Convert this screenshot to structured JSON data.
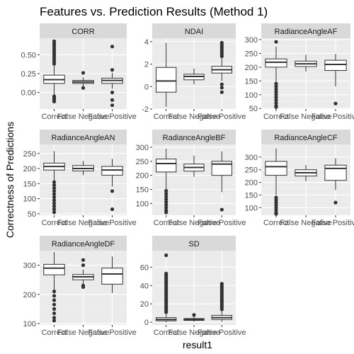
{
  "title": "Features vs. Prediction Results (Method 1)",
  "chart_data": {
    "type": "boxplot",
    "title": "Features vs. Prediction Results (Method 1)",
    "xlabel": "result1",
    "ylabel": "Correctness of Predictions",
    "categories": [
      "Correct",
      "False Negative",
      "False Positive"
    ],
    "grid": true,
    "facet_layout": "3 columns, free y scales",
    "colors": {
      "panel_background": "#ebebeb",
      "strip_background": "#d9d9d9",
      "grid_major": "#ffffff",
      "box_fill": "#ffffff",
      "box_stroke": "#333333"
    },
    "panels": [
      {
        "name": "CORR",
        "ylim": [
          -0.22,
          0.72
        ],
        "yticks": [
          0.0,
          0.25,
          0.5
        ],
        "ytick_labels": [
          "0.00",
          "0.25",
          "0.50"
        ],
        "boxes": [
          {
            "category": "Correct",
            "min": -0.04,
            "q1": 0.12,
            "median": 0.17,
            "q3": 0.23,
            "max": 0.37,
            "outliers_low": [
              -0.05,
              -0.07,
              -0.09,
              -0.1,
              -0.12
            ],
            "outliers_high": [
              0.38,
              0.41,
              0.44,
              0.47,
              0.5,
              0.53,
              0.56,
              0.59,
              0.62,
              0.65,
              0.68
            ]
          },
          {
            "category": "False Negative",
            "min": 0.08,
            "q1": 0.12,
            "median": 0.14,
            "q3": 0.16,
            "max": 0.2,
            "outliers_low": [
              0.06
            ],
            "outliers_high": [
              0.26
            ]
          },
          {
            "category": "False Positive",
            "min": 0.05,
            "q1": 0.12,
            "median": 0.16,
            "q3": 0.19,
            "max": 0.26,
            "outliers_low": [
              0.0,
              -0.1,
              -0.17
            ],
            "outliers_high": [
              0.3,
              0.61
            ]
          }
        ]
      },
      {
        "name": "NDAI",
        "ylim": [
          -2.0,
          4.3
        ],
        "yticks": [
          -2,
          0,
          2,
          4
        ],
        "ytick_labels": [
          "-2",
          "0",
          "2",
          "4"
        ],
        "boxes": [
          {
            "category": "Correct",
            "min": -1.8,
            "q1": -0.5,
            "median": 0.5,
            "q3": 1.7,
            "max": 3.9,
            "outliers_low": [],
            "outliers_high": []
          },
          {
            "category": "False Negative",
            "min": 0.2,
            "q1": 0.6,
            "median": 0.9,
            "q3": 1.1,
            "max": 1.6,
            "outliers_low": [],
            "outliers_high": []
          },
          {
            "category": "False Positive",
            "min": 0.5,
            "q1": 1.2,
            "median": 1.5,
            "q3": 1.8,
            "max": 2.6,
            "outliers_low": [
              0.2,
              -0.1,
              -0.5
            ],
            "outliers_high": [
              2.7,
              2.9,
              3.1,
              3.3,
              3.5,
              3.7,
              3.9
            ]
          }
        ]
      },
      {
        "name": "RadianceAngleAF",
        "ylim": [
          48,
          305
        ],
        "yticks": [
          50,
          100,
          150,
          200,
          250,
          300
        ],
        "ytick_labels": [
          "50",
          "100",
          "150",
          "200",
          "250",
          "300"
        ],
        "boxes": [
          {
            "category": "Correct",
            "min": 145,
            "q1": 200,
            "median": 218,
            "q3": 230,
            "max": 275,
            "outliers_low": [
              140,
              130,
              120,
              110,
              100,
              90,
              80,
              70,
              60,
              55
            ],
            "outliers_high": [
              292
            ]
          },
          {
            "category": "False Negative",
            "min": 185,
            "q1": 202,
            "median": 212,
            "q3": 222,
            "max": 245,
            "outliers_low": [],
            "outliers_high": []
          },
          {
            "category": "False Positive",
            "min": 130,
            "q1": 188,
            "median": 210,
            "q3": 225,
            "max": 248,
            "outliers_low": [
              68
            ],
            "outliers_high": []
          }
        ]
      },
      {
        "name": "RadianceAngleAN",
        "ylim": [
          45,
          280
        ],
        "yticks": [
          50,
          100,
          150,
          200,
          250
        ],
        "ytick_labels": [
          "50",
          "100",
          "150",
          "200",
          "250"
        ],
        "boxes": [
          {
            "category": "Correct",
            "min": 160,
            "q1": 195,
            "median": 207,
            "q3": 218,
            "max": 258,
            "outliers_low": [
              155,
              145,
              135,
              125,
              115,
              105,
              95,
              85,
              75,
              65,
              55
            ],
            "outliers_high": []
          },
          {
            "category": "False Negative",
            "min": 178,
            "q1": 192,
            "median": 200,
            "q3": 210,
            "max": 225,
            "outliers_low": [],
            "outliers_high": []
          },
          {
            "category": "False Positive",
            "min": 140,
            "q1": 178,
            "median": 195,
            "q3": 207,
            "max": 232,
            "outliers_low": [
              125,
              65
            ],
            "outliers_high": []
          }
        ]
      },
      {
        "name": "RadianceAngleBF",
        "ylim": [
          58,
          310
        ],
        "yticks": [
          100,
          150,
          200,
          250,
          300
        ],
        "ytick_labels": [
          "100",
          "150",
          "200",
          "250",
          "300"
        ],
        "boxes": [
          {
            "category": "Correct",
            "min": 150,
            "q1": 212,
            "median": 242,
            "q3": 258,
            "max": 295,
            "outliers_low": [
              145,
              135,
              125,
              115,
              105,
              95,
              85,
              75,
              68
            ],
            "outliers_high": []
          },
          {
            "category": "False Negative",
            "min": 195,
            "q1": 215,
            "median": 228,
            "q3": 240,
            "max": 270,
            "outliers_low": [],
            "outliers_high": []
          },
          {
            "category": "False Positive",
            "min": 140,
            "q1": 200,
            "median": 240,
            "q3": 250,
            "max": 285,
            "outliers_low": [
              78
            ],
            "outliers_high": []
          }
        ]
      },
      {
        "name": "RadianceAngleCF",
        "ylim": [
          70,
          350
        ],
        "yticks": [
          100,
          150,
          200,
          250,
          300
        ],
        "ytick_labels": [
          "100",
          "150",
          "200",
          "250",
          "300"
        ],
        "boxes": [
          {
            "category": "Correct",
            "min": 150,
            "q1": 228,
            "median": 262,
            "q3": 283,
            "max": 335,
            "outliers_low": [
              140,
              130,
              120,
              110,
              100,
              90,
              80,
              75
            ],
            "outliers_high": []
          },
          {
            "category": "False Negative",
            "min": 205,
            "q1": 225,
            "median": 238,
            "q3": 250,
            "max": 268,
            "outliers_low": [],
            "outliers_high": []
          },
          {
            "category": "False Positive",
            "min": 170,
            "q1": 208,
            "median": 255,
            "q3": 268,
            "max": 295,
            "outliers_low": [
              120
            ],
            "outliers_high": []
          }
        ]
      },
      {
        "name": "RadianceAngleDF",
        "ylim": [
          95,
          350
        ],
        "yticks": [
          100,
          200,
          300
        ],
        "ytick_labels": [
          "100",
          "200",
          "300"
        ],
        "boxes": [
          {
            "category": "Correct",
            "min": 215,
            "q1": 267,
            "median": 290,
            "q3": 303,
            "max": 345,
            "outliers_low": [
              210,
              195,
              180,
              165,
              150,
              135,
              120,
              110
            ],
            "outliers_high": []
          },
          {
            "category": "False Negative",
            "min": 235,
            "q1": 250,
            "median": 260,
            "q3": 268,
            "max": 285,
            "outliers_low": [
              230,
              225
            ],
            "outliers_high": [
              300,
              318
            ]
          },
          {
            "category": "False Positive",
            "min": 205,
            "q1": 235,
            "median": 270,
            "q3": 290,
            "max": 330,
            "outliers_low": [],
            "outliers_high": []
          }
        ]
      },
      {
        "name": "SD",
        "ylim": [
          -3,
          78
        ],
        "yticks": [
          0,
          20,
          40,
          60
        ],
        "ytick_labels": [
          "0",
          "20",
          "40",
          "60"
        ],
        "boxes": [
          {
            "category": "Correct",
            "min": 0,
            "q1": 1.5,
            "median": 3,
            "q3": 5,
            "max": 10,
            "outliers_low": [],
            "outliers_high": [
              11,
              13,
              15,
              17,
              19,
              21,
              23,
              25,
              27,
              29,
              31,
              33,
              35,
              37,
              39,
              41,
              43,
              45,
              47,
              49,
              51,
              53,
              73
            ]
          },
          {
            "category": "False Negative",
            "min": 0.5,
            "q1": 2,
            "median": 3,
            "q3": 4,
            "max": 6.5,
            "outliers_low": [],
            "outliers_high": [
              8
            ]
          },
          {
            "category": "False Positive",
            "min": 0.5,
            "q1": 3,
            "median": 5,
            "q3": 7.5,
            "max": 13,
            "outliers_low": [],
            "outliers_high": [
              14,
              16,
              18,
              20,
              22,
              24,
              26,
              28,
              30,
              32,
              34,
              36,
              38,
              40,
              42
            ]
          }
        ]
      }
    ]
  }
}
